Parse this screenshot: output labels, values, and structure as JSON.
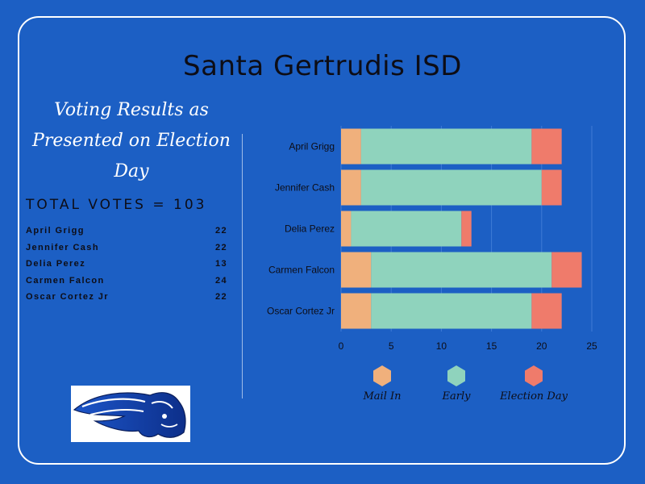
{
  "header": {
    "title": "Santa Gertrudis ISD",
    "subtitle_line1": "Voting Results as",
    "subtitle_line2": "Presented on Election Day"
  },
  "summary": {
    "total_label": "TOTAL VOTES = 103",
    "candidates": [
      {
        "name": "April Grigg",
        "total": "22"
      },
      {
        "name": "Jennifer Cash",
        "total": "22"
      },
      {
        "name": "Delia Perez",
        "total": "13"
      },
      {
        "name": "Carmen Falcon",
        "total": "24"
      },
      {
        "name": "Oscar Cortez Jr",
        "total": "22"
      }
    ]
  },
  "colors": {
    "background": "#1c5fc4",
    "mail_in": "#f0b07c",
    "early": "#8fd3bd",
    "election_day": "#ef7b6b"
  },
  "logo": {
    "icon": "buffalo-mascot-icon"
  },
  "chart_data": {
    "type": "bar",
    "orientation": "horizontal",
    "stacked": true,
    "categories": [
      "April Grigg",
      "Jennifer Cash",
      "Delia Perez",
      "Carmen Falcon",
      "Oscar Cortez Jr"
    ],
    "series": [
      {
        "name": "Mail In",
        "values": [
          2,
          2,
          1,
          3,
          3
        ]
      },
      {
        "name": "Early",
        "values": [
          17,
          18,
          11,
          18,
          16
        ]
      },
      {
        "name": "Election Day",
        "values": [
          3,
          2,
          1,
          3,
          3
        ]
      }
    ],
    "xlim": [
      0,
      25
    ],
    "xticks": [
      0,
      5,
      10,
      15,
      20,
      25
    ],
    "grid": "vertical",
    "legend": "bottom"
  }
}
